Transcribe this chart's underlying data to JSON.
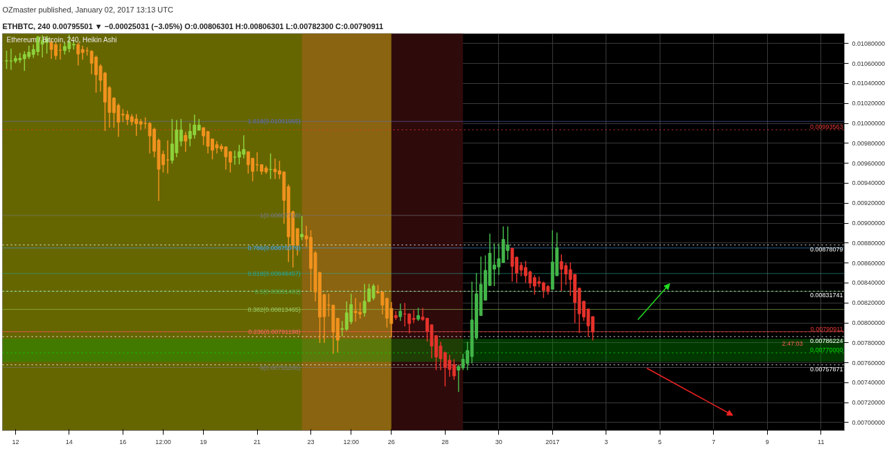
{
  "chart_data": {
    "type": "candlestick",
    "title": "OZmaster published, January 02, 2017 13:13 UTC",
    "subtitle": "ETHBTC, 240  0.00795501 ▼ −0.00025031 (−3.05%)  O:0.00806301  H:0.00806301  L:0.00782300  C:0.00790911",
    "annotations": [
      "Ethereum / Bitcoin, 240, Heikin Ashi",
      "2:47:03"
    ],
    "x": [
      "2016-12-11T16:00",
      "2016-12-11T20:00",
      "2016-12-12T00:00",
      "2016-12-12T04:00",
      "2016-12-12T08:00",
      "2016-12-12T12:00",
      "2016-12-12T16:00",
      "2016-12-12T20:00",
      "2016-12-13T00:00",
      "2016-12-13T04:00",
      "2016-12-13T08:00",
      "2016-12-13T12:00",
      "2016-12-13T16:00",
      "2016-12-13T20:00",
      "2016-12-14T00:00",
      "2016-12-14T04:00",
      "2016-12-14T08:00",
      "2016-12-14T12:00",
      "2016-12-14T16:00",
      "2016-12-14T20:00",
      "2016-12-15T00:00",
      "2016-12-15T04:00",
      "2016-12-15T08:00",
      "2016-12-15T12:00",
      "2016-12-15T16:00",
      "2016-12-15T20:00",
      "2016-12-16T00:00",
      "2016-12-16T04:00",
      "2016-12-16T08:00",
      "2016-12-16T12:00",
      "2016-12-16T16:00",
      "2016-12-16T20:00",
      "2016-12-17T00:00",
      "2016-12-17T04:00",
      "2016-12-17T08:00",
      "2016-12-17T12:00",
      "2016-12-17T16:00",
      "2016-12-17T20:00",
      "2016-12-18T00:00",
      "2016-12-18T04:00",
      "2016-12-18T08:00",
      "2016-12-18T12:00",
      "2016-12-18T16:00",
      "2016-12-18T20:00",
      "2016-12-19T00:00",
      "2016-12-19T04:00",
      "2016-12-19T08:00",
      "2016-12-19T12:00",
      "2016-12-19T16:00",
      "2016-12-19T20:00",
      "2016-12-20T00:00",
      "2016-12-20T04:00",
      "2016-12-20T08:00",
      "2016-12-20T12:00",
      "2016-12-20T16:00",
      "2016-12-20T20:00",
      "2016-12-21T00:00",
      "2016-12-21T04:00",
      "2016-12-21T08:00",
      "2016-12-21T12:00",
      "2016-12-21T16:00",
      "2016-12-21T20:00",
      "2016-12-22T00:00",
      "2016-12-22T04:00",
      "2016-12-22T08:00",
      "2016-12-22T12:00",
      "2016-12-22T16:00",
      "2016-12-22T20:00",
      "2016-12-23T00:00",
      "2016-12-23T04:00",
      "2016-12-23T08:00",
      "2016-12-23T12:00",
      "2016-12-23T16:00",
      "2016-12-23T20:00",
      "2016-12-24T00:00",
      "2016-12-24T04:00",
      "2016-12-24T08:00",
      "2016-12-24T12:00",
      "2016-12-24T16:00",
      "2016-12-24T20:00",
      "2016-12-25T00:00",
      "2016-12-25T04:00",
      "2016-12-25T08:00",
      "2016-12-25T12:00",
      "2016-12-25T16:00",
      "2016-12-25T20:00",
      "2016-12-26T00:00",
      "2016-12-26T04:00",
      "2016-12-26T08:00",
      "2016-12-26T12:00",
      "2016-12-26T16:00",
      "2016-12-26T20:00",
      "2016-12-27T00:00",
      "2016-12-27T04:00",
      "2016-12-27T08:00",
      "2016-12-27T12:00",
      "2016-12-27T16:00",
      "2016-12-27T20:00",
      "2016-12-28T00:00",
      "2016-12-28T04:00",
      "2016-12-28T08:00",
      "2016-12-28T12:00",
      "2016-12-28T16:00",
      "2016-12-28T20:00",
      "2016-12-29T00:00",
      "2016-12-29T04:00",
      "2016-12-29T08:00",
      "2016-12-29T12:00",
      "2016-12-29T16:00",
      "2016-12-29T20:00",
      "2016-12-30T00:00",
      "2016-12-30T04:00",
      "2016-12-30T08:00",
      "2016-12-30T12:00",
      "2016-12-30T16:00",
      "2016-12-30T20:00",
      "2016-12-31T00:00",
      "2016-12-31T04:00",
      "2016-12-31T08:00",
      "2016-12-31T12:00",
      "2016-12-31T16:00",
      "2016-12-31T20:00",
      "2017-01-01T00:00",
      "2017-01-01T04:00",
      "2017-01-01T08:00",
      "2017-01-01T12:00",
      "2017-01-01T16:00",
      "2017-01-01T20:00",
      "2017-01-02T00:00",
      "2017-01-02T04:00",
      "2017-01-02T08:00",
      "2017-01-02T12:00"
    ],
    "ohlc": [
      [
        0.010625,
        0.010728,
        0.010544,
        0.010627
      ],
      [
        0.010625,
        0.010749,
        0.010537,
        0.010626
      ],
      [
        0.010625,
        0.01068,
        0.010603,
        0.010651
      ],
      [
        0.010636,
        0.010706,
        0.010607,
        0.010653
      ],
      [
        0.010647,
        0.010723,
        0.010526,
        0.01069
      ],
      [
        0.010669,
        0.010778,
        0.010647,
        0.010713
      ],
      [
        0.01069,
        0.010789,
        0.010657,
        0.010741
      ],
      [
        0.010719,
        0.010877,
        0.01068,
        0.010866
      ],
      [
        0.010793,
        0.010885,
        0.010662,
        0.010833
      ],
      [
        0.010811,
        0.010877,
        0.010701,
        0.010851
      ],
      [
        0.010811,
        0.010844,
        0.010647,
        0.010741
      ],
      [
        0.010789,
        0.010811,
        0.01064,
        0.01068
      ],
      [
        0.010734,
        0.0108,
        0.01064,
        0.010733
      ],
      [
        0.01073,
        0.010811,
        0.01069,
        0.010772
      ],
      [
        0.010749,
        0.01089,
        0.010713,
        0.010811
      ],
      [
        0.010785,
        0.010833,
        0.010741,
        0.010793
      ],
      [
        0.010789,
        0.010811,
        0.010581,
        0.010695
      ],
      [
        0.010741,
        0.010778,
        0.01064,
        0.01071
      ],
      [
        0.010728,
        0.010763,
        0.01068,
        0.010727
      ],
      [
        0.010723,
        0.010734,
        0.010493,
        0.010603
      ],
      [
        0.010664,
        0.01068,
        0.010307,
        0.010487
      ],
      [
        0.010575,
        0.010592,
        0.010318,
        0.010432
      ],
      [
        0.010504,
        0.010516,
        0.009924,
        0.010213
      ],
      [
        0.010358,
        0.010373,
        0.009957,
        0.01011
      ],
      [
        0.010253,
        0.010263,
        0.009957,
        0.010106
      ],
      [
        0.01018,
        0.010198,
        0.009865,
        0.010012
      ],
      [
        0.010092,
        0.010143,
        0.010012,
        0.010084
      ],
      [
        0.010088,
        0.010128,
        0.009983,
        0.010038
      ],
      [
        0.010066,
        0.010092,
        0.009979,
        0.010016
      ],
      [
        0.010044,
        0.010092,
        0.009874,
        0.009996
      ],
      [
        0.010018,
        0.010044,
        0.009935,
        0.009992
      ],
      [
        0.01,
        0.010062,
        0.009946,
        0.009999
      ],
      [
        0.01,
        0.010012,
        0.009698,
        0.009874
      ],
      [
        0.009941,
        0.009957,
        0.009661,
        0.009721
      ],
      [
        0.00983,
        0.009847,
        0.009223,
        0.009541
      ],
      [
        0.00969,
        0.009727,
        0.009508,
        0.009585
      ],
      [
        0.009633,
        0.009828,
        0.009497,
        0.009632
      ],
      [
        0.009629,
        0.010044,
        0.009596,
        0.009793
      ],
      [
        0.009705,
        0.010033,
        0.009661,
        0.009935
      ],
      [
        0.009821,
        0.010044,
        0.00977,
        0.009935
      ],
      [
        0.00988,
        0.009913,
        0.009716,
        0.009821
      ],
      [
        0.009847,
        0.01,
        0.00977,
        0.00992
      ],
      [
        0.009885,
        0.010088,
        0.009847,
        0.009983
      ],
      [
        0.009931,
        0.010044,
        0.009931,
        0.009983
      ],
      [
        0.009957,
        0.009961,
        0.009782,
        0.009874
      ],
      [
        0.009918,
        0.009924,
        0.009698,
        0.00977
      ],
      [
        0.009843,
        0.009847,
        0.009639,
        0.009731
      ],
      [
        0.009786,
        0.009821,
        0.009698,
        0.009753
      ],
      [
        0.00977,
        0.009793,
        0.009716,
        0.009744
      ],
      [
        0.009764,
        0.009769,
        0.009537,
        0.009665
      ],
      [
        0.009716,
        0.009721,
        0.009508,
        0.009611
      ],
      [
        0.009661,
        0.009727,
        0.009585,
        0.009662
      ],
      [
        0.009661,
        0.009786,
        0.009589,
        0.009716
      ],
      [
        0.00969,
        0.00988,
        0.00965,
        0.009738
      ],
      [
        0.009716,
        0.009716,
        0.009497,
        0.009585
      ],
      [
        0.00965,
        0.009655,
        0.00942,
        0.009519
      ],
      [
        0.009585,
        0.009711,
        0.009519,
        0.009584
      ],
      [
        0.009585,
        0.009589,
        0.009486,
        0.009519
      ],
      [
        0.009552,
        0.009573,
        0.009493,
        0.009514
      ],
      [
        0.009537,
        0.009698,
        0.009442,
        0.009538
      ],
      [
        0.009541,
        0.009646,
        0.009442,
        0.009514
      ],
      [
        0.009525,
        0.009624,
        0.009442,
        0.009491
      ],
      [
        0.009512,
        0.009519,
        0.008993,
        0.009228
      ],
      [
        0.009366,
        0.009387,
        0.00861,
        0.008862
      ],
      [
        0.009113,
        0.009125,
        0.008555,
        0.008778
      ],
      [
        0.008945,
        0.008949,
        0.008676,
        0.008778
      ],
      [
        0.008862,
        0.00907,
        0.008829,
        0.008888
      ],
      [
        0.008873,
        0.008972,
        0.008763,
        0.00884
      ],
      [
        0.008857,
        0.008928,
        0.008315,
        0.008545
      ],
      [
        0.008702,
        0.008719,
        0.008216,
        0.00831
      ],
      [
        0.008505,
        0.008512,
        0.007799,
        0.008058
      ],
      [
        0.008282,
        0.008292,
        0.007799,
        0.008062
      ],
      [
        0.008179,
        0.008292,
        0.008062,
        0.008178
      ],
      [
        0.008177,
        0.008183,
        0.00769,
        0.007909
      ],
      [
        0.008045,
        0.008052,
        0.007701,
        0.007826
      ],
      [
        0.007935,
        0.008019,
        0.007865,
        0.007942
      ],
      [
        0.007935,
        0.008216,
        0.00792,
        0.0081
      ],
      [
        0.008012,
        0.008292,
        0.007986,
        0.008183
      ],
      [
        0.008117,
        0.008249,
        0.008012,
        0.008102
      ],
      [
        0.008106,
        0.008205,
        0.008041,
        0.008089
      ],
      [
        0.0081,
        0.008391,
        0.008062,
        0.008216
      ],
      [
        0.008216,
        0.008391,
        0.008205,
        0.008341
      ],
      [
        0.008249,
        0.008391,
        0.008227,
        0.008369
      ],
      [
        0.00831,
        0.00838,
        0.008292,
        0.008301
      ],
      [
        0.00831,
        0.008315,
        0.008085,
        0.008178
      ],
      [
        0.008244,
        0.008253,
        0.007953,
        0.008047
      ],
      [
        0.008144,
        0.008209,
        0.007855,
        0.007993
      ],
      [
        0.008073,
        0.008117,
        0.008029,
        0.008052
      ],
      [
        0.008062,
        0.008194,
        0.008019,
        0.008117
      ],
      [
        0.008089,
        0.0082,
        0.007964,
        0.008088
      ],
      [
        0.008089,
        0.008095,
        0.007894,
        0.007993
      ],
      [
        0.008045,
        0.008128,
        0.007997,
        0.008034
      ],
      [
        0.008036,
        0.00815,
        0.008019,
        0.008073
      ],
      [
        0.008058,
        0.00815,
        0.008019,
        0.008034
      ],
      [
        0.008045,
        0.008052,
        0.007811,
        0.007914
      ],
      [
        0.00798,
        0.007986,
        0.007646,
        0.007767
      ],
      [
        0.007872,
        0.007876,
        0.007526,
        0.007658
      ],
      [
        0.007767,
        0.007811,
        0.007526,
        0.00764
      ],
      [
        0.007701,
        0.007712,
        0.007362,
        0.007554
      ],
      [
        0.007625,
        0.007679,
        0.00746,
        0.007533
      ],
      [
        0.007581,
        0.007635,
        0.007428,
        0.007467
      ],
      [
        0.007526,
        0.007581,
        0.007307,
        0.007563
      ],
      [
        0.007548,
        0.00769,
        0.007526,
        0.007635
      ],
      [
        0.007592,
        0.007811,
        0.007526,
        0.007723
      ],
      [
        0.007662,
        0.008413,
        0.007592,
        0.008029
      ],
      [
        0.007848,
        0.0085,
        0.007832,
        0.008292
      ],
      [
        0.008073,
        0.008665,
        0.008073,
        0.008387
      ],
      [
        0.008227,
        0.008676,
        0.008227,
        0.008527
      ],
      [
        0.008374,
        0.008895,
        0.008374,
        0.008698
      ],
      [
        0.008538,
        0.008796,
        0.008369,
        0.008581
      ],
      [
        0.00856,
        0.008796,
        0.008479,
        0.008643
      ],
      [
        0.008604,
        0.008967,
        0.008604,
        0.008836
      ],
      [
        0.008724,
        0.008967,
        0.008632,
        0.008781
      ],
      [
        0.008748,
        0.008752,
        0.008413,
        0.008566
      ],
      [
        0.008658,
        0.008665,
        0.008402,
        0.0085
      ],
      [
        0.008577,
        0.00861,
        0.008468,
        0.008529
      ],
      [
        0.008555,
        0.008621,
        0.008402,
        0.008472
      ],
      [
        0.008512,
        0.008522,
        0.008347,
        0.008397
      ],
      [
        0.008453,
        0.008479,
        0.008282,
        0.008369
      ],
      [
        0.008413,
        0.008463,
        0.008358,
        0.008395
      ],
      [
        0.008402,
        0.008413,
        0.008249,
        0.008325
      ],
      [
        0.008365,
        0.00838,
        0.008282,
        0.008315
      ],
      [
        0.008336,
        0.008928,
        0.008336,
        0.00861
      ],
      [
        0.008472,
        0.008906,
        0.008472,
        0.008752
      ],
      [
        0.008614,
        0.008686,
        0.008319,
        0.008538
      ],
      [
        0.008573,
        0.008599,
        0.00838,
        0.008489
      ],
      [
        0.008533,
        0.008604,
        0.008271,
        0.008435
      ],
      [
        0.008485,
        0.008489,
        0.007997,
        0.008205
      ],
      [
        0.008347,
        0.008354,
        0.007898,
        0.008091
      ],
      [
        0.008216,
        0.008223,
        0.008019,
        0.008058
      ],
      [
        0.008139,
        0.008144,
        0.007859,
        0.00797
      ],
      [
        0.00806301,
        0.00806301,
        0.007823,
        0.00790911
      ]
    ],
    "colors": [
      "#8ed23c",
      "#8ed23c",
      "#8ed23c",
      "#8ed23c",
      "#8ed23c",
      "#8ed23c",
      "#8ed23c",
      "#8ed23c",
      "#8ed23c",
      "#8ed23c",
      "#f0921e",
      "#f0921e",
      "#f0921e",
      "#8ed23c",
      "#8ed23c",
      "#8ed23c",
      "#f0921e",
      "#f0921e",
      "#f0921e",
      "#f0921e",
      "#f0921e",
      "#f0921e",
      "#f0921e",
      "#f0921e",
      "#f0921e",
      "#f0921e",
      "#f0921e",
      "#f0921e",
      "#f0921e",
      "#f0921e",
      "#f0921e",
      "#f0921e",
      "#f0921e",
      "#f0921e",
      "#f0921e",
      "#f0921e",
      "#f0921e",
      "#8ed23c",
      "#8ed23c",
      "#8ed23c",
      "#f0921e",
      "#8ed23c",
      "#8ed23c",
      "#8ed23c",
      "#f0921e",
      "#f0921e",
      "#f0921e",
      "#f0921e",
      "#f0921e",
      "#f0921e",
      "#f0921e",
      "#8ed23c",
      "#8ed23c",
      "#8ed23c",
      "#f0921e",
      "#f0921e",
      "#f0921e",
      "#f0921e",
      "#f0921e",
      "#8ed23c",
      "#f0921e",
      "#f0921e",
      "#f0921e",
      "#f0921e",
      "#f0921e",
      "#f0921e",
      "#8ed23c",
      "#f0921e",
      "#f0921e",
      "#f0921e",
      "#f0921e",
      "#f0921e",
      "#f0921e",
      "#f0921e",
      "#f0921e",
      "#8ed23c",
      "#8ed23c",
      "#8ed23c",
      "#f0921e",
      "#f0921e",
      "#8ed23c",
      "#8ed23c",
      "#8ed23c",
      "#f0921e",
      "#f0921e",
      "#f0921e",
      "#f0921e",
      "#e5322b",
      "#43b649",
      "#e5322b",
      "#e5322b",
      "#e5322b",
      "#43b649",
      "#e5322b",
      "#e5322b",
      "#e5322b",
      "#e5322b",
      "#e5322b",
      "#e5322b",
      "#e5322b",
      "#e5322b",
      "#43b649",
      "#43b649",
      "#43b649",
      "#43b649",
      "#43b649",
      "#43b649",
      "#43b649",
      "#43b649",
      "#43b649",
      "#43b649",
      "#43b649",
      "#43b649",
      "#e5322b",
      "#e5322b",
      "#e5322b",
      "#e5322b",
      "#e5322b",
      "#e5322b",
      "#e5322b",
      "#e5322b",
      "#e5322b",
      "#43b649",
      "#43b649",
      "#e5322b",
      "#e5322b",
      "#e5322b",
      "#e5322b",
      "#e5322b",
      "#e5322b",
      "#e5322b",
      "#e5322b"
    ],
    "xlim": [
      "2016-12-11T12:18",
      "2017-01-11T20:55"
    ],
    "xticks": [
      {
        "value": "2016-12-12",
        "label": "12"
      },
      {
        "value": "2016-12-14",
        "label": "14"
      },
      {
        "value": "2016-12-16",
        "label": "16"
      },
      {
        "value": "2016-12-17T12:00",
        "label": "12:00"
      },
      {
        "value": "2016-12-19",
        "label": "19"
      },
      {
        "value": "2016-12-21",
        "label": "21"
      },
      {
        "value": "2016-12-23",
        "label": "23"
      },
      {
        "value": "2016-12-24T12:00",
        "label": "12:00"
      },
      {
        "value": "2016-12-26",
        "label": "26"
      },
      {
        "value": "2016-12-28",
        "label": "28"
      },
      {
        "value": "2016-12-30",
        "label": "30"
      },
      {
        "value": "2017-01-01",
        "label": "2017"
      },
      {
        "value": "2017-01-03",
        "label": "3"
      },
      {
        "value": "2017-01-05",
        "label": "5"
      },
      {
        "value": "2017-01-07",
        "label": "7"
      },
      {
        "value": "2017-01-09",
        "label": "9"
      },
      {
        "value": "2017-01-11",
        "label": "11"
      }
    ],
    "ylim": [
      0.00692,
      0.0109
    ],
    "yticks": [
      {
        "value": 0.007,
        "label": "0.00700000"
      },
      {
        "value": 0.0072,
        "label": "0.00720000"
      },
      {
        "value": 0.0074,
        "label": "0.00740000"
      },
      {
        "value": 0.0076,
        "label": "0.00760000"
      },
      {
        "value": 0.0078,
        "label": "0.00780000"
      },
      {
        "value": 0.008,
        "label": "0.00800000"
      },
      {
        "value": 0.0082,
        "label": "0.00820000"
      },
      {
        "value": 0.0084,
        "label": "0.00840000"
      },
      {
        "value": 0.0086,
        "label": "0.00860000"
      },
      {
        "value": 0.0088,
        "label": "0.00880000"
      },
      {
        "value": 0.009,
        "label": "0.00900000"
      },
      {
        "value": 0.0092,
        "label": "0.00920000"
      },
      {
        "value": 0.0094,
        "label": "0.00940000"
      },
      {
        "value": 0.0096,
        "label": "0.00960000"
      },
      {
        "value": 0.0098,
        "label": "0.00980000"
      },
      {
        "value": 0.01,
        "label": "0.01000000"
      },
      {
        "value": 0.0102,
        "label": "0.01020000"
      },
      {
        "value": 0.0104,
        "label": "0.01040000"
      },
      {
        "value": 0.0106,
        "label": "0.01060000"
      },
      {
        "value": 0.0108,
        "label": "0.01080000"
      }
    ],
    "grid": true,
    "bands": [
      {
        "axis": "x",
        "from": "2016-12-11T12:18",
        "to": "2016-12-26T00:00",
        "color": "#666600"
      },
      {
        "axis": "x",
        "from": "2016-12-22T16:00",
        "to": "2016-12-26T00:00",
        "color": "#8a6410"
      },
      {
        "axis": "x",
        "from": "2016-12-26T00:00",
        "to": "2016-12-28T16:00",
        "color": "#2e0a0a"
      },
      {
        "axis": "y",
        "from": 0.00761,
        "to": 0.00784,
        "color": "#00a000"
      }
    ],
    "ref_lines": [
      {
        "axis": "y",
        "value": 0.01001965,
        "label": "1.618(0.01001965)",
        "color": "#5c6bc0",
        "line_style": "solid"
      },
      {
        "axis": "y",
        "value": 0.00907716,
        "label": "1(0.00907716)",
        "color": "#787b86",
        "line_style": "solid"
      },
      {
        "axis": "y",
        "value": 0.00875079,
        "label": "0.786(0.00875079)",
        "color": "#42a5f5",
        "line_style": "solid"
      },
      {
        "axis": "y",
        "value": 0.00849457,
        "label": "0.618(0.00849457)",
        "color": "#26a69a",
        "line_style": "solid"
      },
      {
        "axis": "y",
        "value": 0.00831461,
        "label": "0.5(0.00831461)",
        "color": "#4caf50",
        "line_style": "solid"
      },
      {
        "axis": "y",
        "value": 0.00813465,
        "label": "0.382(0.00813465)",
        "color": "#9ccc65",
        "line_style": "solid"
      },
      {
        "axis": "y",
        "value": 0.00791198,
        "label": "0.236(0.00791198)",
        "color": "#ff6a6a",
        "line_style": "solid"
      },
      {
        "axis": "y",
        "value": 0.00755206,
        "label": "0(0.00755206)",
        "color": "#787b86",
        "line_style": "solid"
      },
      {
        "axis": "y",
        "value": 0.00993563,
        "label": "0.00993563",
        "color": "#e53935",
        "line_style": "dotted"
      },
      {
        "axis": "y",
        "value": 0.00878079,
        "label": "0.00878079",
        "color": "#ffffff",
        "line_style": "dotted"
      },
      {
        "axis": "y",
        "value": 0.00831741,
        "label": "0.00831741",
        "color": "#ffffff",
        "line_style": "dotted"
      },
      {
        "axis": "y",
        "value": 0.00790911,
        "label": "0.00790911",
        "color": "#e53935",
        "line_style": "dotted"
      },
      {
        "axis": "y",
        "value": 0.00786224,
        "label": "0.00786224",
        "color": "#ffffff",
        "line_style": "dotted"
      },
      {
        "axis": "y",
        "value": 0.0077,
        "label": "0.00770000",
        "color": "#00e000",
        "line_style": "dotted"
      },
      {
        "axis": "y",
        "value": 0.00757871,
        "label": "0.00757871",
        "color": "#ffffff",
        "line_style": "dotted"
      }
    ]
  }
}
